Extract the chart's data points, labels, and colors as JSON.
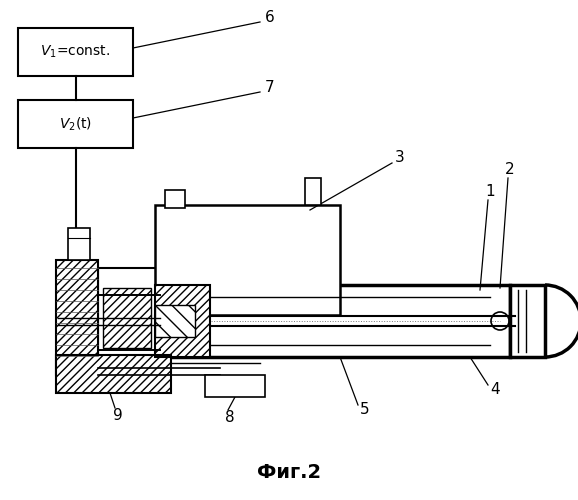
{
  "title": "Фиг.2",
  "bg_color": "#ffffff",
  "line_color": "#000000",
  "box1_label": "V₁=const.",
  "box2_label": "V₂(t)",
  "labels": [
    "1",
    "2",
    "3",
    "4",
    "5",
    "6",
    "7",
    "8",
    "9"
  ]
}
